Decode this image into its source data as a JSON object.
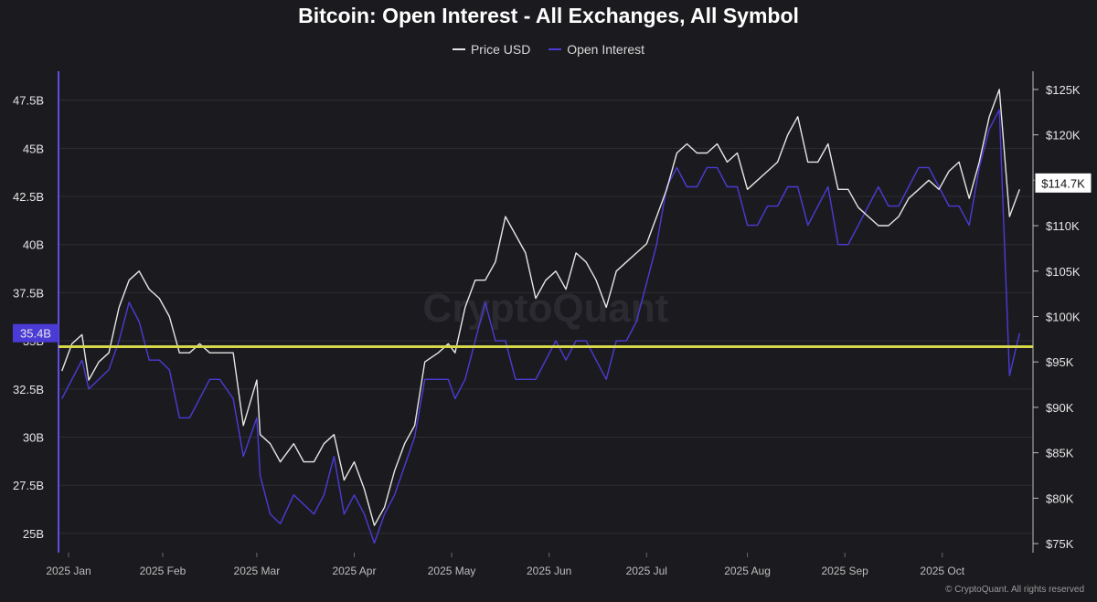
{
  "chart_data": {
    "type": "line",
    "title": "Bitcoin: Open Interest - All Exchanges, All Symbol",
    "watermark": "CryptoQuant",
    "copyright": "© CryptoQuant. All rights reserved",
    "legend": {
      "placement": "top-center"
    },
    "grid": true,
    "x_labels": [
      "2025 Jan",
      "2025 Feb",
      "2025 Mar",
      "2025 Apr",
      "2025 May",
      "2025 Jun",
      "2025 Jul",
      "2025 Aug",
      "2025 Sep",
      "2025 Oct"
    ],
    "left_axis": {
      "name": "Open Interest",
      "ticks": [
        "25B",
        "27.5B",
        "30B",
        "32.5B",
        "35B",
        "37.5B",
        "40B",
        "42.5B",
        "45B",
        "47.5B"
      ],
      "ylim": [
        24,
        49
      ]
    },
    "right_axis": {
      "name": "Price USD",
      "ticks": [
        "$75K",
        "$80K",
        "$85K",
        "$90K",
        "$95K",
        "$100K",
        "$105K",
        "$110K",
        "$115K",
        "$120K",
        "$125K"
      ],
      "ylim": [
        74,
        127
      ]
    },
    "current_oi_label": "35.4B",
    "current_price_label": "$114.7K",
    "reference_line": {
      "axis": "left",
      "value": 34.7,
      "color": "#d6d84a"
    },
    "colors": {
      "price": "#e6e6e6",
      "oi": "#4b3bd6",
      "background": "#1b1b1f"
    },
    "series": [
      {
        "name": "Price USD",
        "axis": "right",
        "x": [
          1,
          4,
          7,
          9,
          12,
          15,
          18,
          21,
          24,
          27,
          30,
          33,
          36,
          39,
          42,
          45,
          48,
          52,
          55,
          59,
          60,
          63,
          66,
          70,
          73,
          76,
          79,
          82,
          85,
          88,
          91,
          94,
          97,
          100,
          103,
          106,
          109,
          113,
          116,
          118,
          121,
          124,
          127,
          130,
          133,
          136,
          139,
          142,
          145,
          148,
          151,
          154,
          157,
          160,
          163,
          166,
          169,
          172,
          175,
          178,
          181,
          184,
          187,
          190,
          193,
          196,
          199,
          202,
          205,
          208,
          211,
          214,
          217,
          220,
          223,
          226,
          229,
          232,
          235,
          238,
          241,
          244,
          247,
          250,
          253,
          256,
          259,
          262,
          265,
          268,
          271,
          274,
          277,
          280,
          283,
          286
        ],
        "y": [
          94,
          97,
          98,
          93,
          95,
          96,
          101,
          104,
          105,
          103,
          102,
          100,
          96,
          96,
          97,
          96,
          96,
          96,
          88,
          93,
          87,
          86,
          84,
          86,
          84,
          84,
          86,
          87,
          82,
          84,
          81,
          77,
          79,
          83,
          86,
          88,
          95,
          96,
          97,
          96,
          101,
          104,
          104,
          106,
          111,
          109,
          107,
          102,
          104,
          105,
          103,
          107,
          106,
          104,
          101,
          105,
          106,
          107,
          108,
          111,
          114,
          118,
          119,
          118,
          118,
          119,
          117,
          118,
          114,
          115,
          116,
          117,
          120,
          122,
          117,
          117,
          119,
          114,
          114,
          112,
          111,
          110,
          110,
          111,
          113,
          114,
          115,
          114,
          116,
          117,
          113,
          117,
          122,
          125,
          111,
          114
        ]
      },
      {
        "name": "Open Interest",
        "axis": "left",
        "x": [
          1,
          4,
          7,
          9,
          12,
          15,
          18,
          21,
          24,
          27,
          30,
          33,
          36,
          39,
          42,
          45,
          48,
          52,
          55,
          59,
          60,
          63,
          66,
          70,
          73,
          76,
          79,
          82,
          85,
          88,
          91,
          94,
          97,
          100,
          103,
          106,
          109,
          113,
          116,
          118,
          121,
          124,
          127,
          130,
          133,
          136,
          139,
          142,
          145,
          148,
          151,
          154,
          157,
          160,
          163,
          166,
          169,
          172,
          175,
          178,
          181,
          184,
          187,
          190,
          193,
          196,
          199,
          202,
          205,
          208,
          211,
          214,
          217,
          220,
          223,
          226,
          229,
          232,
          235,
          238,
          241,
          244,
          247,
          250,
          253,
          256,
          259,
          262,
          265,
          268,
          271,
          274,
          277,
          280,
          283,
          286
        ],
        "y": [
          32,
          33,
          34,
          32.5,
          33,
          33.5,
          35,
          37,
          36,
          34,
          34,
          33.5,
          31,
          31,
          32,
          33,
          33,
          32,
          29,
          31,
          28,
          26,
          25.5,
          27,
          26.5,
          26,
          27,
          29,
          26,
          27,
          26,
          24.5,
          26,
          27,
          28.5,
          30,
          33,
          33,
          33,
          32,
          33,
          35,
          37,
          35,
          35,
          33,
          33,
          33,
          34,
          35,
          34,
          35,
          35,
          34,
          33,
          35,
          35,
          36,
          38,
          40,
          43,
          44,
          43,
          43,
          44,
          44,
          43,
          43,
          41,
          41,
          42,
          42,
          43,
          43,
          41,
          42,
          43,
          40,
          40,
          41,
          42,
          43,
          42,
          42,
          43,
          44,
          44,
          43,
          42,
          42,
          41,
          44,
          46,
          47,
          33.2,
          35.4
        ]
      }
    ]
  }
}
